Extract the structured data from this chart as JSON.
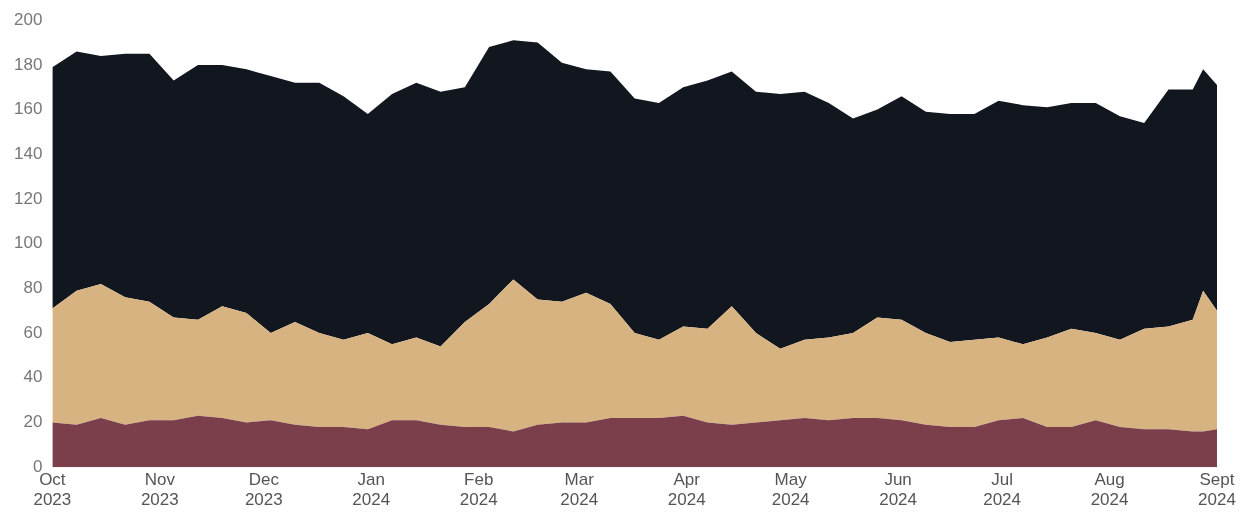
{
  "chart_data": {
    "type": "area",
    "stacked": true,
    "grid": false,
    "x": [
      "2023-10-01",
      "2023-10-08",
      "2023-10-15",
      "2023-10-22",
      "2023-10-29",
      "2023-11-05",
      "2023-11-12",
      "2023-11-19",
      "2023-11-26",
      "2023-12-03",
      "2023-12-10",
      "2023-12-17",
      "2023-12-24",
      "2023-12-31",
      "2024-01-07",
      "2024-01-14",
      "2024-01-21",
      "2024-01-28",
      "2024-02-04",
      "2024-02-11",
      "2024-02-18",
      "2024-02-25",
      "2024-03-03",
      "2024-03-10",
      "2024-03-17",
      "2024-03-24",
      "2024-03-31",
      "2024-04-07",
      "2024-04-14",
      "2024-04-21",
      "2024-04-28",
      "2024-05-05",
      "2024-05-12",
      "2024-05-19",
      "2024-05-26",
      "2024-06-02",
      "2024-06-09",
      "2024-06-16",
      "2024-06-23",
      "2024-06-30",
      "2024-07-07",
      "2024-07-14",
      "2024-07-21",
      "2024-07-28",
      "2024-08-04",
      "2024-08-11",
      "2024-08-18",
      "2024-08-25",
      "2024-08-28",
      "2024-09-01"
    ],
    "series": [
      {
        "color": "#7a3f4b",
        "values": [
          20,
          19,
          22,
          19,
          21,
          21,
          23,
          22,
          20,
          21,
          19,
          18,
          18,
          17,
          21,
          21,
          19,
          18,
          18,
          16,
          19,
          20,
          20,
          22,
          22,
          22,
          23,
          20,
          19,
          20,
          21,
          22,
          21,
          22,
          22,
          21,
          19,
          18,
          18,
          21,
          22,
          18,
          18,
          21,
          18,
          17,
          17,
          16,
          16,
          17
        ]
      },
      {
        "color": "#d8b382",
        "values": [
          51,
          60,
          60,
          57,
          53,
          46,
          43,
          50,
          49,
          39,
          46,
          42,
          39,
          43,
          34,
          37,
          35,
          47,
          55,
          68,
          56,
          54,
          58,
          51,
          38,
          35,
          40,
          42,
          53,
          40,
          32,
          35,
          37,
          38,
          45,
          45,
          41,
          38,
          39,
          37,
          33,
          40,
          44,
          39,
          39,
          45,
          46,
          50,
          63,
          53
        ]
      },
      {
        "color": "#12161f",
        "values": [
          108,
          107,
          102,
          109,
          111,
          106,
          114,
          108,
          109,
          115,
          107,
          112,
          109,
          98,
          112,
          114,
          114,
          105,
          115,
          107,
          115,
          107,
          100,
          104,
          105,
          106,
          107,
          111,
          105,
          108,
          114,
          111,
          105,
          96,
          93,
          100,
          99,
          102,
          101,
          106,
          107,
          103,
          101,
          103,
          100,
          92,
          106,
          103,
          99,
          101
        ]
      }
    ],
    "xlim": [
      "2023-10-01",
      "2024-09-01"
    ],
    "xticks": [
      {
        "value": "2023-10-01",
        "label": "Oct\n2023"
      },
      {
        "value": "2023-11-01",
        "label": "Nov\n2023"
      },
      {
        "value": "2023-12-01",
        "label": "Dec\n2023"
      },
      {
        "value": "2024-01-01",
        "label": "Jan\n2024"
      },
      {
        "value": "2024-02-01",
        "label": "Feb\n2024"
      },
      {
        "value": "2024-03-01",
        "label": "Mar\n2024"
      },
      {
        "value": "2024-04-01",
        "label": "Apr\n2024"
      },
      {
        "value": "2024-05-01",
        "label": "May\n2024"
      },
      {
        "value": "2024-06-01",
        "label": "Jun\n2024"
      },
      {
        "value": "2024-07-01",
        "label": "Jul\n2024"
      },
      {
        "value": "2024-08-01",
        "label": "Aug\n2024"
      },
      {
        "value": "2024-09-01",
        "label": "Sept\n2024"
      }
    ],
    "ylim": [
      0,
      200
    ],
    "yticks": [
      0,
      20,
      40,
      60,
      80,
      100,
      120,
      140,
      160,
      180,
      200
    ],
    "legend": false
  }
}
